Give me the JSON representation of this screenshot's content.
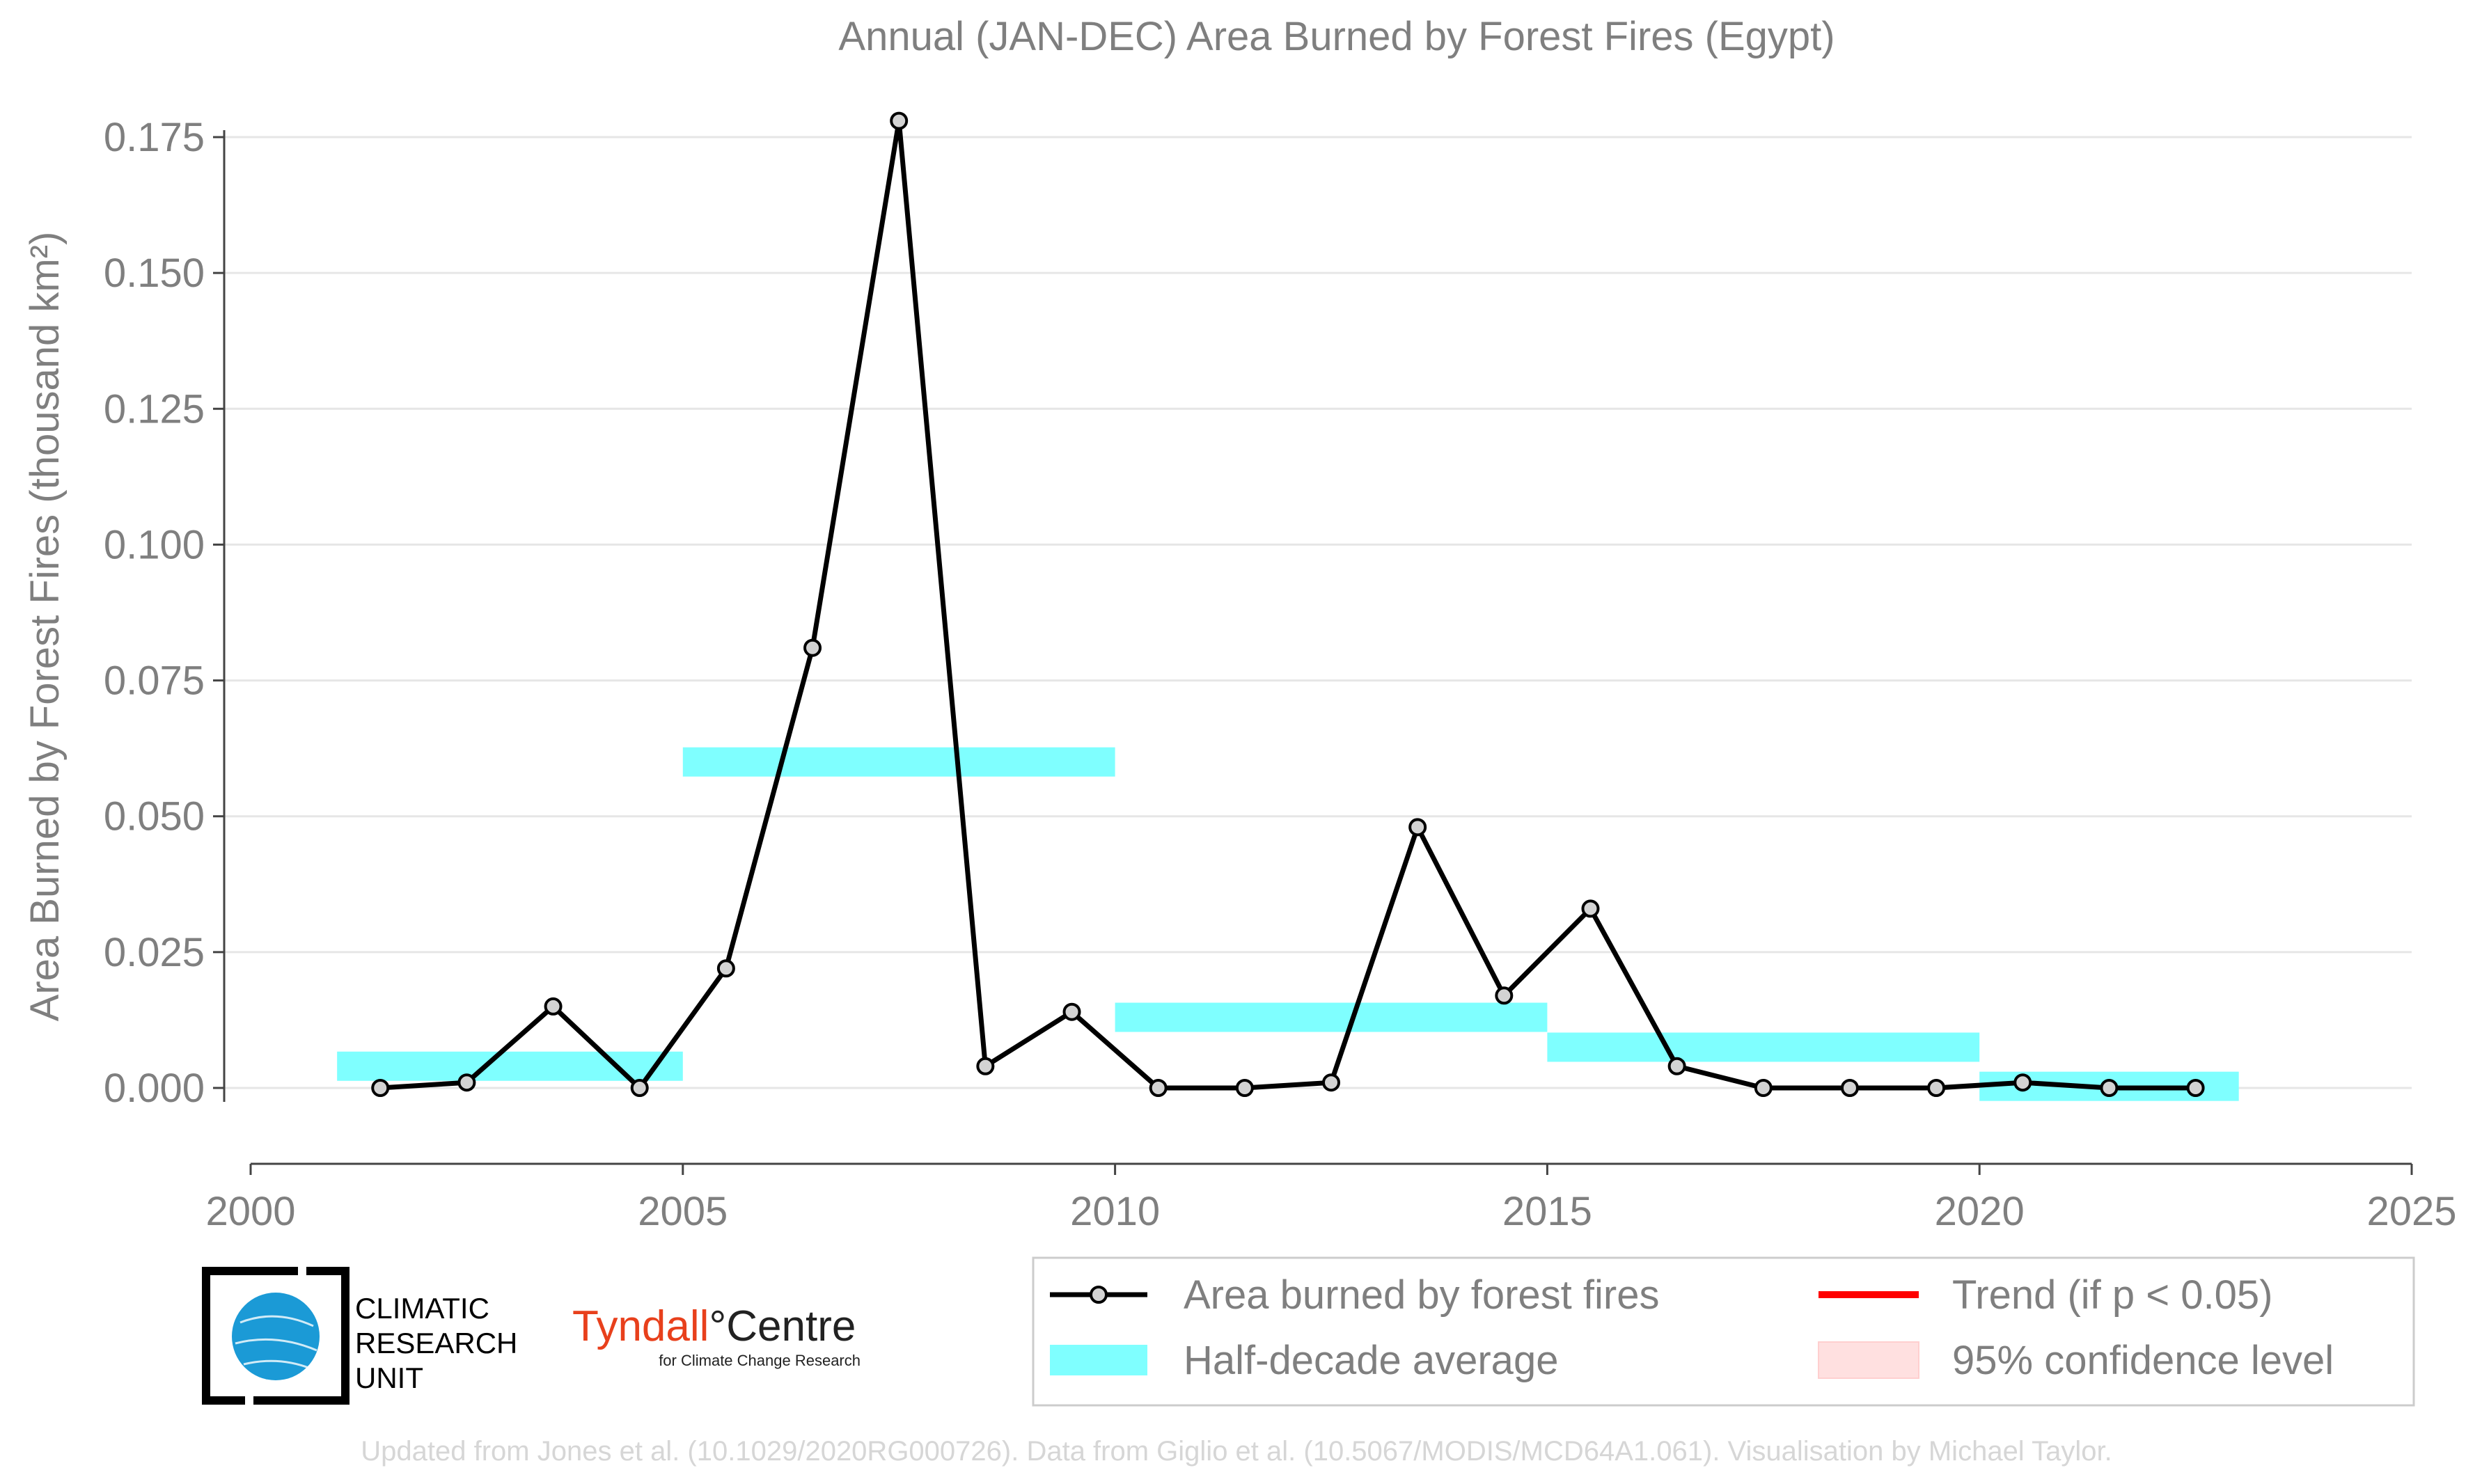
{
  "chart_data": {
    "type": "line",
    "title": "Annual (JAN-DEC) Area Burned by Forest Fires (Egypt)",
    "ylabel": "Area Burned by Forest Fires (thousand km²)",
    "xlabel": "",
    "xlim": [
      2000,
      2025
    ],
    "ylim": [
      -0.0135,
      0.18
    ],
    "x_ticks": [
      2000,
      2005,
      2010,
      2015,
      2020,
      2025
    ],
    "x_tick_labels": [
      "2000",
      "2005",
      "2010",
      "2015",
      "2020",
      "2025"
    ],
    "y_ticks": [
      0.0,
      0.025,
      0.05,
      0.075,
      0.1,
      0.125,
      0.15,
      0.175
    ],
    "y_tick_labels": [
      "0.000",
      "0.025",
      "0.050",
      "0.075",
      "0.100",
      "0.125",
      "0.150",
      "0.175"
    ],
    "grid": "horizontal",
    "series": [
      {
        "name": "Area burned by forest fires",
        "x": [
          2001.5,
          2002.5,
          2003.5,
          2004.5,
          2005.5,
          2006.5,
          2007.5,
          2008.5,
          2009.5,
          2010.5,
          2011.5,
          2012.5,
          2013.5,
          2014.5,
          2015.5,
          2016.5,
          2017.5,
          2018.5,
          2019.5,
          2020.5,
          2021.5,
          2022.5
        ],
        "values": [
          0.0,
          0.001,
          0.015,
          0.0,
          0.022,
          0.081,
          0.178,
          0.004,
          0.014,
          0.0,
          0.0,
          0.001,
          0.048,
          0.017,
          0.033,
          0.004,
          0.0,
          0.0,
          0.0,
          0.001,
          0.0,
          0.0
        ],
        "color": "#000000",
        "marker_fill": "#d3d3d3"
      }
    ],
    "half_decade_average": {
      "name": "Half-decade average",
      "color": "#7fffff",
      "segments": [
        {
          "x0": 2001,
          "x1": 2005,
          "value": 0.004
        },
        {
          "x0": 2005,
          "x1": 2010,
          "value": 0.06
        },
        {
          "x0": 2010,
          "x1": 2015,
          "value": 0.013
        },
        {
          "x0": 2015,
          "x1": 2020,
          "value": 0.0075
        },
        {
          "x0": 2020,
          "x1": 2023,
          "value": 0.0003
        }
      ]
    },
    "legend": {
      "placement": "bottom-right",
      "entries": [
        {
          "label": "Area burned by forest fires",
          "kind": "line-marker",
          "color": "#000000"
        },
        {
          "label": "Trend (if p < 0.05)",
          "kind": "line",
          "color": "#ff0000"
        },
        {
          "label": "Half-decade average",
          "kind": "band",
          "color": "#7fffff"
        },
        {
          "label": "95% confidence level",
          "kind": "band",
          "color": "#ffe0e0"
        }
      ]
    }
  },
  "logos": {
    "cru_line1": "CLIMATIC",
    "cru_line2": "RESEARCH",
    "cru_line3": "UNIT",
    "tyndall_name": "Tyndall",
    "tyndall_degree": "°",
    "tyndall_centre": "Centre",
    "tyndall_sub": "for Climate Change Research"
  },
  "footer": {
    "credit": "Updated from Jones et al. (10.1029/2020RG000726). Data from Giglio et al. (10.5067/MODIS/MCD64A1.061). Visualisation by Michael Taylor."
  }
}
